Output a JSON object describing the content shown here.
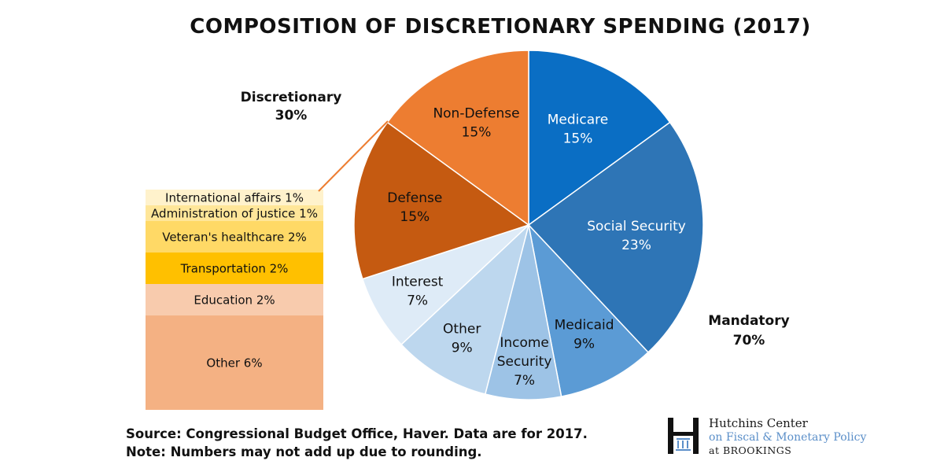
{
  "chart_data": {
    "type": "pie",
    "title": "COMPOSITION OF DISCRETIONARY SPENDING (2017)",
    "groups": [
      {
        "name": "Discretionary",
        "value_label": "30%"
      },
      {
        "name": "Mandatory",
        "value_label": "70%"
      }
    ],
    "slices": [
      {
        "label": "Medicare",
        "value": 15,
        "value_label": "15%",
        "color": "#0a6ec4",
        "text_color": "#ffffff"
      },
      {
        "label": "Social Security",
        "value": 23,
        "value_label": "23%",
        "color": "#2e75b6",
        "text_color": "#ffffff"
      },
      {
        "label": "Medicaid",
        "value": 9,
        "value_label": "9%",
        "color": "#5b9bd5",
        "text_color": "#111111"
      },
      {
        "label": "Income Security",
        "value": 7,
        "value_label": "7%",
        "color": "#9dc3e6",
        "text_color": "#111111"
      },
      {
        "label": "Other",
        "value": 9,
        "value_label": "9%",
        "color": "#bdd7ee",
        "text_color": "#111111"
      },
      {
        "label": "Interest",
        "value": 7,
        "value_label": "7%",
        "color": "#deebf7",
        "text_color": "#111111"
      },
      {
        "label": "Defense",
        "value": 15,
        "value_label": "15%",
        "color": "#c55a11",
        "text_color": "#111111"
      },
      {
        "label": "Non-Defense",
        "value": 15,
        "value_label": "15%",
        "color": "#ed7d31",
        "text_color": "#111111"
      }
    ],
    "breakdown": {
      "of": "Non-Defense",
      "items": [
        {
          "label": "International affairs",
          "value": 1,
          "value_label": "1%",
          "color": "#fff2cc"
        },
        {
          "label": "Administration of justice",
          "value": 1,
          "value_label": "1%",
          "color": "#ffe699"
        },
        {
          "label": "Veteran's healthcare",
          "value": 2,
          "value_label": "2%",
          "color": "#ffd966"
        },
        {
          "label": "Transportation",
          "value": 2,
          "value_label": "2%",
          "color": "#ffc000"
        },
        {
          "label": "Education",
          "value": 2,
          "value_label": "2%",
          "color": "#f8cbad"
        },
        {
          "label": "Other",
          "value": 6,
          "value_label": "6%",
          "color": "#f4b183"
        }
      ]
    },
    "source": "Source:  Congressional Budget Office, Haver. Data are for 2017.",
    "note": "Note: Numbers may not add up due to rounding."
  },
  "logo": {
    "name": "Hutchins Center",
    "sub": "on Fiscal & Monetary Policy",
    "at": "at BROOKINGS"
  }
}
